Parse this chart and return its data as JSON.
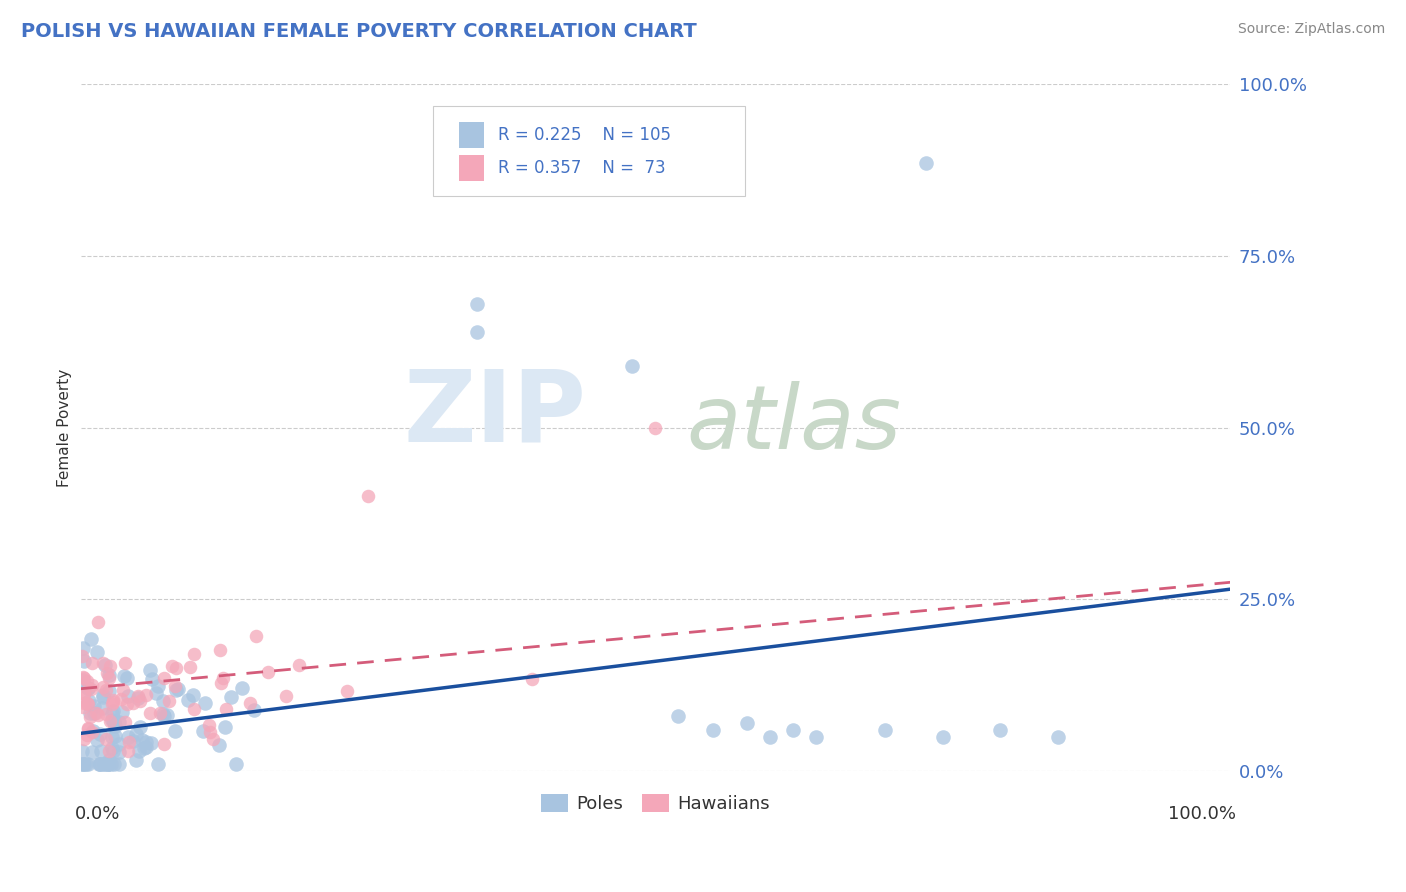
{
  "title": "POLISH VS HAWAIIAN FEMALE POVERTY CORRELATION CHART",
  "source": "Source: ZipAtlas.com",
  "ylabel": "Female Poverty",
  "right_yticklabels": [
    "0.0%",
    "25.0%",
    "50.0%",
    "75.0%",
    "100.0%"
  ],
  "right_ytick_vals": [
    0.0,
    0.25,
    0.5,
    0.75,
    1.0
  ],
  "poles_R": 0.225,
  "poles_N": 105,
  "hawaiians_R": 0.357,
  "hawaiians_N": 73,
  "poles_color": "#a8c4e0",
  "poles_line_color": "#1a4f9e",
  "hawaiians_color": "#f4a7b9",
  "hawaiians_line_color": "#d45c7a",
  "legend_label_poles": "Poles",
  "legend_label_hawaiians": "Hawaiians",
  "background_color": "#ffffff",
  "title_color": "#4472c4",
  "source_color": "#888888",
  "right_tick_color": "#4472c4",
  "legend_text_color": "#4472c4",
  "grid_color": "#cccccc",
  "watermark_zip_color": "#dce8f4",
  "watermark_atlas_color": "#c8d8c8"
}
